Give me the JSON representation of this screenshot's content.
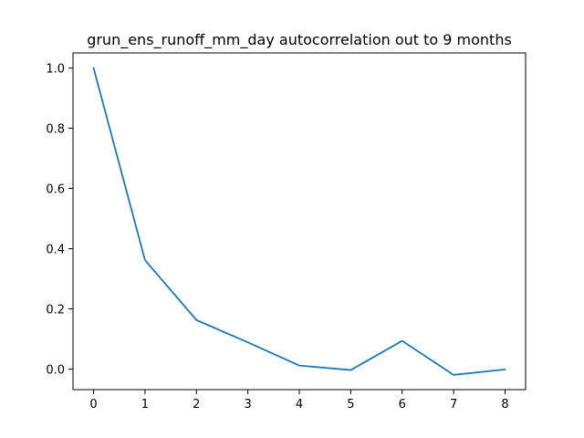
{
  "chart_data": {
    "type": "line",
    "title": "grun_ens_runoff_mm_day autocorrelation out to 9 months",
    "xlabel": "",
    "ylabel": "",
    "x": [
      0,
      1,
      2,
      3,
      4,
      5,
      6,
      7,
      8
    ],
    "series": [
      {
        "values": [
          1.0,
          0.362,
          0.163,
          0.089,
          0.012,
          -0.003,
          0.094,
          -0.019,
          -0.001
        ]
      }
    ],
    "xlim": [
      -0.4,
      8.4
    ],
    "ylim": [
      -0.068,
      1.05
    ],
    "xticks": [
      "0",
      "1",
      "2",
      "3",
      "4",
      "5",
      "6",
      "7",
      "8"
    ],
    "yticks": [
      "0.0",
      "0.2",
      "0.4",
      "0.6",
      "0.8",
      "1.0"
    ],
    "grid": false,
    "line_color": "#1f77b4"
  }
}
